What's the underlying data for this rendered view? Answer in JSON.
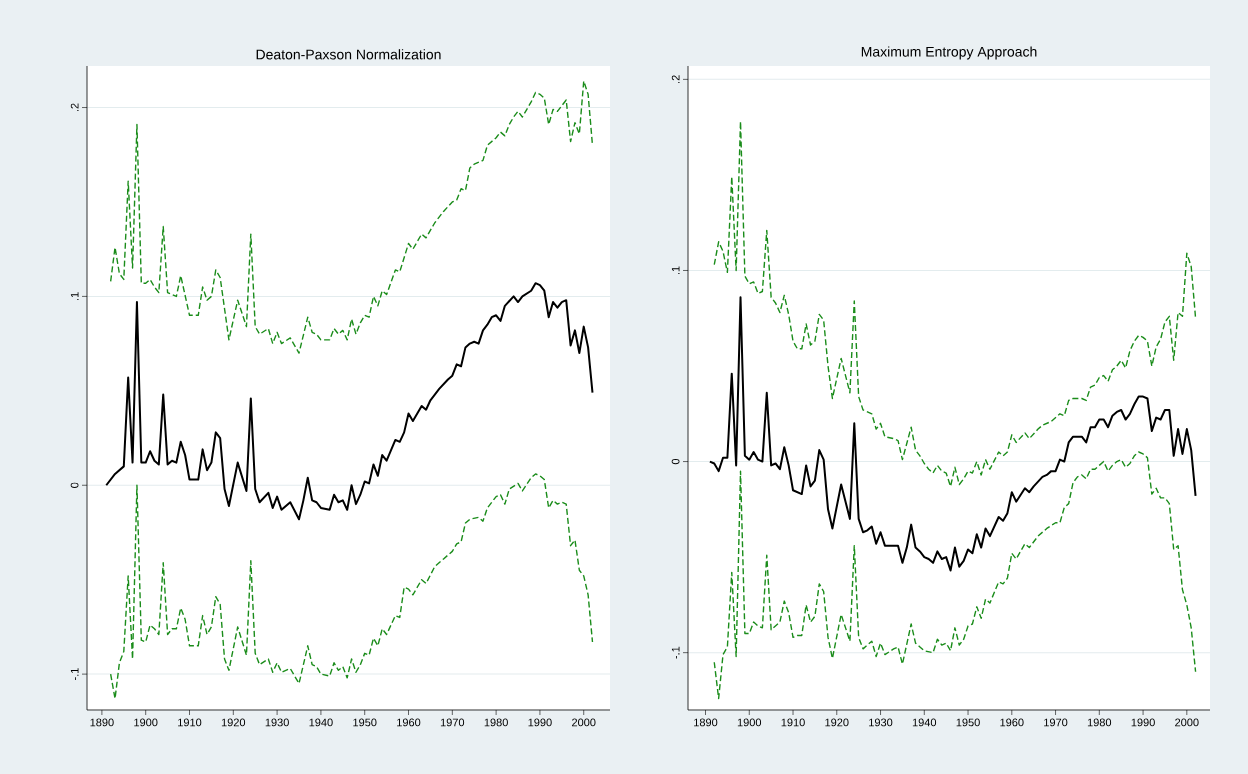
{
  "chart_data": [
    {
      "type": "line",
      "title": "Deaton-Paxson Normalization",
      "grid": "y",
      "xlim": [
        1886.6,
        2006
      ],
      "ylim": [
        -0.119,
        0.222
      ],
      "xticks": [
        1890,
        1900,
        1910,
        1920,
        1930,
        1940,
        1950,
        1960,
        1970,
        1980,
        1990,
        2000
      ],
      "yticks": [
        {
          "value": -0.1,
          "label": "-.1"
        },
        0,
        {
          "value": 0.1,
          "label": ".1"
        },
        {
          "value": 0.2,
          "label": ".2"
        }
      ],
      "series": [
        {
          "color": "#000000",
          "line_style": "solid",
          "x": [
            1891,
            1893,
            1895,
            1896,
            1897,
            1898,
            1899,
            1900,
            1901,
            1902,
            1903,
            1904,
            1905,
            1906,
            1907,
            1908,
            1909,
            1910,
            1912,
            1913,
            1914,
            1915,
            1916,
            1917,
            1918,
            1919,
            1921,
            1923,
            1924,
            1925,
            1926,
            1928,
            1929,
            1930,
            1931,
            1933,
            1935,
            1936,
            1937,
            1938,
            1939,
            1940,
            1942,
            1943,
            1944,
            1945,
            1946,
            1947,
            1948,
            1949,
            1950,
            1951,
            1952,
            1953,
            1954,
            1955,
            1957,
            1958,
            1959,
            1960,
            1961,
            1963,
            1964,
            1965,
            1967,
            1969,
            1970,
            1971,
            1972,
            1973,
            1974,
            1975,
            1976,
            1977,
            1978,
            1979,
            1980,
            1981,
            1982,
            1984,
            1985,
            1986,
            1988,
            1989,
            1990,
            1991,
            1992,
            1993,
            1994,
            1995,
            1996,
            1997,
            1998,
            1999,
            2000,
            2001,
            2002
          ],
          "values": [
            0,
            0.006,
            0.01,
            0.057,
            0.012,
            0.097,
            0.012,
            0.012,
            0.018,
            0.013,
            0.011,
            0.048,
            0.011,
            0.013,
            0.012,
            0.023,
            0.016,
            0.003,
            0.003,
            0.019,
            0.008,
            0.012,
            0.028,
            0.025,
            -0.002,
            -0.011,
            0.012,
            -0.003,
            0.046,
            -0.002,
            -0.009,
            -0.004,
            -0.012,
            -0.006,
            -0.013,
            -0.009,
            -0.018,
            -0.008,
            0.004,
            -0.008,
            -0.009,
            -0.012,
            -0.013,
            -0.005,
            -0.009,
            -0.008,
            -0.013,
            0,
            -0.01,
            -0.005,
            0.002,
            0.001,
            0.011,
            0.005,
            0.016,
            0.013,
            0.024,
            0.023,
            0.028,
            0.038,
            0.034,
            0.042,
            0.04,
            0.045,
            0.051,
            0.056,
            0.058,
            0.064,
            0.063,
            0.073,
            0.075,
            0.076,
            0.075,
            0.082,
            0.085,
            0.089,
            0.09,
            0.087,
            0.095,
            0.1,
            0.097,
            0.1,
            0.103,
            0.107,
            0.106,
            0.103,
            0.089,
            0.097,
            0.094,
            0.097,
            0.098,
            0.074,
            0.082,
            0.07,
            0.084,
            0.073,
            0.049
          ]
        },
        {
          "color": "#1a8c1a",
          "line_style": "dashed",
          "x": [
            1892,
            1893,
            1894,
            1895,
            1896,
            1897,
            1898,
            1899,
            1900,
            1901,
            1902,
            1903,
            1904,
            1905,
            1907,
            1908,
            1910,
            1912,
            1913,
            1914,
            1915,
            1916,
            1917,
            1919,
            1921,
            1923,
            1924,
            1925,
            1926,
            1928,
            1929,
            1930,
            1931,
            1933,
            1935,
            1937,
            1938,
            1939,
            1940,
            1942,
            1943,
            1944,
            1945,
            1946,
            1947,
            1948,
            1949,
            1950,
            1951,
            1952,
            1953,
            1954,
            1955,
            1957,
            1958,
            1960,
            1961,
            1963,
            1964,
            1966,
            1968,
            1970,
            1971,
            1972,
            1973,
            1974,
            1975,
            1977,
            1978,
            1980,
            1981,
            1982,
            1983,
            1984,
            1985,
            1986,
            1988,
            1989,
            1990,
            1991,
            1992,
            1993,
            1994,
            1995,
            1996,
            1997,
            1998,
            1999,
            2000,
            2001,
            2002
          ],
          "values": [
            0.108,
            0.126,
            0.112,
            0.109,
            0.161,
            0.115,
            0.191,
            0.107,
            0.107,
            0.109,
            0.105,
            0.102,
            0.137,
            0.102,
            0.1,
            0.111,
            0.09,
            0.09,
            0.105,
            0.098,
            0.1,
            0.114,
            0.11,
            0.077,
            0.098,
            0.084,
            0.133,
            0.084,
            0.08,
            0.083,
            0.075,
            0.081,
            0.075,
            0.078,
            0.07,
            0.089,
            0.081,
            0.08,
            0.077,
            0.077,
            0.083,
            0.08,
            0.082,
            0.077,
            0.088,
            0.08,
            0.086,
            0.09,
            0.089,
            0.1,
            0.095,
            0.103,
            0.101,
            0.114,
            0.113,
            0.128,
            0.125,
            0.133,
            0.131,
            0.139,
            0.145,
            0.15,
            0.151,
            0.157,
            0.156,
            0.168,
            0.17,
            0.172,
            0.18,
            0.184,
            0.187,
            0.185,
            0.191,
            0.195,
            0.198,
            0.195,
            0.203,
            0.208,
            0.207,
            0.205,
            0.191,
            0.199,
            0.198,
            0.201,
            0.204,
            0.182,
            0.192,
            0.186,
            0.214,
            0.207,
            0.18
          ]
        },
        {
          "color": "#1a8c1a",
          "line_style": "dashed",
          "x": [
            1892,
            1893,
            1894,
            1895,
            1896,
            1897,
            1898,
            1899,
            1900,
            1901,
            1902,
            1903,
            1904,
            1905,
            1906,
            1907,
            1908,
            1909,
            1910,
            1911,
            1912,
            1913,
            1914,
            1915,
            1916,
            1917,
            1918,
            1919,
            1921,
            1923,
            1924,
            1925,
            1926,
            1928,
            1929,
            1930,
            1931,
            1933,
            1935,
            1937,
            1938,
            1939,
            1940,
            1942,
            1943,
            1944,
            1945,
            1946,
            1947,
            1948,
            1949,
            1950,
            1951,
            1952,
            1953,
            1954,
            1955,
            1957,
            1958,
            1959,
            1960,
            1961,
            1963,
            1964,
            1966,
            1968,
            1970,
            1971,
            1972,
            1973,
            1974,
            1976,
            1977,
            1978,
            1980,
            1981,
            1982,
            1983,
            1985,
            1986,
            1988,
            1989,
            1990,
            1991,
            1992,
            1993,
            1994,
            1995,
            1996,
            1997,
            1998,
            1999,
            2000,
            2001,
            2002
          ],
          "values": [
            -0.1,
            -0.113,
            -0.094,
            -0.088,
            -0.048,
            -0.092,
            0,
            -0.082,
            -0.083,
            -0.074,
            -0.076,
            -0.079,
            -0.041,
            -0.079,
            -0.076,
            -0.076,
            -0.065,
            -0.071,
            -0.085,
            -0.085,
            -0.085,
            -0.069,
            -0.079,
            -0.075,
            -0.059,
            -0.063,
            -0.092,
            -0.098,
            -0.075,
            -0.09,
            -0.04,
            -0.089,
            -0.095,
            -0.092,
            -0.099,
            -0.094,
            -0.099,
            -0.097,
            -0.105,
            -0.085,
            -0.095,
            -0.096,
            -0.1,
            -0.101,
            -0.094,
            -0.098,
            -0.096,
            -0.102,
            -0.092,
            -0.099,
            -0.095,
            -0.089,
            -0.09,
            -0.081,
            -0.085,
            -0.076,
            -0.079,
            -0.069,
            -0.07,
            -0.054,
            -0.055,
            -0.058,
            -0.05,
            -0.052,
            -0.043,
            -0.039,
            -0.035,
            -0.031,
            -0.03,
            -0.02,
            -0.018,
            -0.017,
            -0.019,
            -0.012,
            -0.006,
            -0.005,
            -0.01,
            -0.002,
            0.001,
            -0.003,
            0.004,
            0.006,
            0.005,
            0.003,
            -0.012,
            -0.008,
            -0.01,
            -0.009,
            -0.01,
            -0.032,
            -0.029,
            -0.045,
            -0.048,
            -0.058,
            -0.083
          ]
        }
      ]
    },
    {
      "type": "line",
      "title": "Maximum Entropy Approach",
      "grid": "y",
      "xlim": [
        1886,
        2005.3
      ],
      "ylim": [
        -0.13,
        0.207
      ],
      "xticks": [
        1890,
        1900,
        1910,
        1920,
        1930,
        1940,
        1950,
        1960,
        1970,
        1980,
        1990,
        2000
      ],
      "yticks": [
        {
          "value": -0.1,
          "label": "-.1"
        },
        0,
        {
          "value": 0.1,
          "label": ".1"
        },
        {
          "value": 0.2,
          "label": ".2"
        }
      ],
      "series": [
        {
          "color": "#000000",
          "line_style": "solid",
          "x": [
            1891,
            1892,
            1893,
            1894,
            1895,
            1896,
            1897,
            1898,
            1899,
            1900,
            1901,
            1902,
            1903,
            1904,
            1905,
            1906,
            1907,
            1908,
            1909,
            1910,
            1911,
            1912,
            1913,
            1914,
            1915,
            1916,
            1917,
            1918,
            1919,
            1921,
            1923,
            1924,
            1925,
            1926,
            1927,
            1928,
            1929,
            1930,
            1931,
            1933,
            1934,
            1935,
            1936,
            1937,
            1938,
            1939,
            1940,
            1941,
            1942,
            1943,
            1944,
            1945,
            1946,
            1947,
            1948,
            1949,
            1950,
            1951,
            1952,
            1953,
            1954,
            1955,
            1957,
            1958,
            1959,
            1960,
            1961,
            1963,
            1964,
            1965,
            1967,
            1968,
            1969,
            1970,
            1971,
            1972,
            1973,
            1974,
            1975,
            1976,
            1977,
            1978,
            1979,
            1980,
            1981,
            1982,
            1983,
            1984,
            1985,
            1986,
            1987,
            1988,
            1989,
            1990,
            1991,
            1992,
            1993,
            1994,
            1995,
            1996,
            1997,
            1998,
            1999,
            2000,
            2001,
            2002
          ],
          "values": [
            0,
            -0.001,
            -0.005,
            0.002,
            0.002,
            0.046,
            -0.002,
            0.086,
            0.003,
            0.001,
            0.005,
            0.001,
            0,
            0.036,
            -0.002,
            -0.001,
            -0.004,
            0.0075,
            -0.002,
            -0.015,
            -0.016,
            -0.017,
            -0.002,
            -0.013,
            -0.01,
            0.006,
            0.001,
            -0.025,
            -0.035,
            -0.012,
            -0.03,
            0.02,
            -0.03,
            -0.037,
            -0.036,
            -0.034,
            -0.043,
            -0.037,
            -0.044,
            -0.044,
            -0.044,
            -0.053,
            -0.045,
            -0.033,
            -0.045,
            -0.047,
            -0.05,
            -0.051,
            -0.053,
            -0.047,
            -0.051,
            -0.05,
            -0.057,
            -0.045,
            -0.055,
            -0.052,
            -0.046,
            -0.048,
            -0.038,
            -0.045,
            -0.035,
            -0.039,
            -0.029,
            -0.031,
            -0.027,
            -0.016,
            -0.021,
            -0.014,
            -0.016,
            -0.013,
            -0.008,
            -0.007,
            -0.005,
            -0.005,
            0.001,
            0,
            0.01,
            0.013,
            0.013,
            0.013,
            0.01,
            0.018,
            0.018,
            0.022,
            0.022,
            0.018,
            0.024,
            0.026,
            0.027,
            0.022,
            0.025,
            0.03,
            0.034,
            0.034,
            0.033,
            0.016,
            0.023,
            0.022,
            0.027,
            0.027,
            0.003,
            0.017,
            0.004,
            0.017,
            0.006,
            -0.018
          ]
        },
        {
          "color": "#1a8c1a",
          "line_style": "dashed",
          "x": [
            1892,
            1893,
            1894,
            1895,
            1896,
            1897,
            1898,
            1899,
            1900,
            1901,
            1902,
            1903,
            1904,
            1905,
            1906,
            1907,
            1908,
            1909,
            1910,
            1911,
            1912,
            1913,
            1914,
            1915,
            1916,
            1917,
            1918,
            1919,
            1921,
            1923,
            1924,
            1925,
            1926,
            1927,
            1928,
            1929,
            1930,
            1931,
            1933,
            1934,
            1935,
            1937,
            1938,
            1939,
            1940,
            1941,
            1942,
            1943,
            1944,
            1945,
            1946,
            1947,
            1948,
            1949,
            1950,
            1951,
            1952,
            1953,
            1954,
            1955,
            1957,
            1958,
            1959,
            1960,
            1961,
            1963,
            1964,
            1966,
            1967,
            1969,
            1970,
            1971,
            1972,
            1973,
            1974,
            1975,
            1976,
            1977,
            1978,
            1979,
            1980,
            1981,
            1982,
            1983,
            1984,
            1985,
            1986,
            1987,
            1988,
            1989,
            1990,
            1991,
            1992,
            1993,
            1994,
            1995,
            1996,
            1997,
            1998,
            1999,
            2000,
            2001,
            2002
          ],
          "values": [
            0.103,
            0.115,
            0.11,
            0.099,
            0.149,
            0.1,
            0.178,
            0.097,
            0.093,
            0.094,
            0.088,
            0.089,
            0.121,
            0.086,
            0.083,
            0.078,
            0.087,
            0.077,
            0.063,
            0.059,
            0.059,
            0.072,
            0.061,
            0.063,
            0.077,
            0.074,
            0.05,
            0.033,
            0.054,
            0.036,
            0.084,
            0.034,
            0.027,
            0.026,
            0.025,
            0.017,
            0.02,
            0.013,
            0.012,
            0.011,
            0.001,
            0.018,
            0.006,
            0.003,
            -0.001,
            -0.004,
            -0.006,
            -0.002,
            -0.005,
            -0.006,
            -0.013,
            -0.003,
            -0.012,
            -0.009,
            -0.005,
            -0.006,
            0,
            -0.007,
            0.001,
            -0.004,
            0.005,
            0.003,
            0.005,
            0.014,
            0.01,
            0.015,
            0.012,
            0.017,
            0.019,
            0.021,
            0.023,
            0.025,
            0.024,
            0.032,
            0.033,
            0.033,
            0.033,
            0.032,
            0.039,
            0.04,
            0.044,
            0.045,
            0.042,
            0.048,
            0.05,
            0.053,
            0.049,
            0.058,
            0.063,
            0.066,
            0.065,
            0.063,
            0.05,
            0.06,
            0.064,
            0.073,
            0.076,
            0.053,
            0.078,
            0.076,
            0.109,
            0.102,
            0.075
          ]
        },
        {
          "color": "#1a8c1a",
          "line_style": "dashed",
          "x": [
            1892,
            1893,
            1894,
            1895,
            1896,
            1897,
            1898,
            1899,
            1900,
            1901,
            1902,
            1903,
            1904,
            1905,
            1906,
            1907,
            1908,
            1909,
            1910,
            1911,
            1912,
            1913,
            1914,
            1915,
            1916,
            1917,
            1918,
            1919,
            1921,
            1923,
            1924,
            1925,
            1926,
            1928,
            1929,
            1930,
            1931,
            1933,
            1934,
            1935,
            1937,
            1938,
            1939,
            1940,
            1942,
            1943,
            1944,
            1945,
            1946,
            1947,
            1948,
            1949,
            1950,
            1951,
            1952,
            1953,
            1954,
            1955,
            1957,
            1958,
            1959,
            1960,
            1961,
            1963,
            1964,
            1966,
            1968,
            1970,
            1971,
            1972,
            1973,
            1974,
            1975,
            1976,
            1977,
            1978,
            1979,
            1980,
            1981,
            1982,
            1983,
            1984,
            1985,
            1986,
            1987,
            1988,
            1989,
            1990,
            1991,
            1992,
            1993,
            1994,
            1995,
            1996,
            1997,
            1998,
            1999,
            2000,
            2001,
            2002
          ],
          "values": [
            -0.105,
            -0.124,
            -0.101,
            -0.097,
            -0.058,
            -0.102,
            -0.005,
            -0.09,
            -0.09,
            -0.084,
            -0.086,
            -0.087,
            -0.049,
            -0.088,
            -0.086,
            -0.084,
            -0.073,
            -0.079,
            -0.092,
            -0.091,
            -0.091,
            -0.075,
            -0.084,
            -0.081,
            -0.064,
            -0.068,
            -0.092,
            -0.103,
            -0.08,
            -0.094,
            -0.044,
            -0.092,
            -0.098,
            -0.094,
            -0.102,
            -0.095,
            -0.101,
            -0.098,
            -0.097,
            -0.106,
            -0.085,
            -0.095,
            -0.097,
            -0.099,
            -0.1,
            -0.093,
            -0.096,
            -0.095,
            -0.099,
            -0.087,
            -0.096,
            -0.093,
            -0.086,
            -0.085,
            -0.076,
            -0.082,
            -0.072,
            -0.074,
            -0.063,
            -0.064,
            -0.061,
            -0.048,
            -0.051,
            -0.043,
            -0.045,
            -0.039,
            -0.035,
            -0.032,
            -0.032,
            -0.024,
            -0.022,
            -0.011,
            -0.008,
            -0.007,
            -0.009,
            -0.004,
            -0.004,
            -0.002,
            0,
            -0.005,
            -0.002,
            0,
            0.001,
            -0.003,
            -0.001,
            0.003,
            0.005,
            0.004,
            0.002,
            -0.017,
            -0.014,
            -0.019,
            -0.019,
            -0.022,
            -0.046,
            -0.044,
            -0.067,
            -0.075,
            -0.087,
            -0.11
          ]
        }
      ]
    }
  ]
}
